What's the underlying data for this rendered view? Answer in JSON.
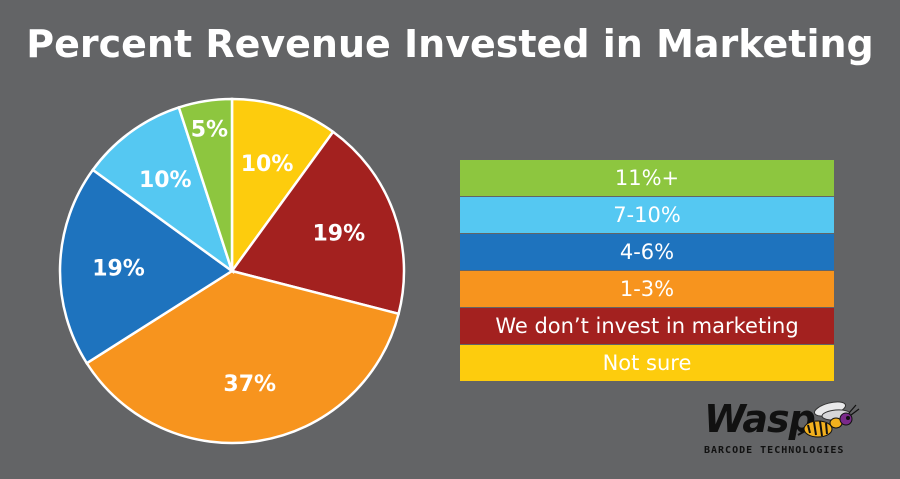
{
  "chart_data": {
    "type": "pie",
    "title": "Percent Revenue Invested in Marketing",
    "slices": [
      {
        "label": "Not sure",
        "value": 10,
        "display": "10%",
        "color": "#FDCC0D"
      },
      {
        "label": "We don’t invest in marketing",
        "value": 19,
        "display": "19%",
        "color": "#A3211F"
      },
      {
        "label": "1-3%",
        "value": 37,
        "display": "37%",
        "color": "#F7941E"
      },
      {
        "label": "4-6%",
        "value": 19,
        "display": "19%",
        "color": "#1E73BE"
      },
      {
        "label": "7-10%",
        "value": 10,
        "display": "10%",
        "color": "#55C8F2"
      },
      {
        "label": "11%+",
        "value": 5,
        "display": "5%",
        "color": "#8DC63F"
      }
    ],
    "start": "top, clockwise",
    "legend": [
      {
        "label": "11%+",
        "color": "#8DC63F"
      },
      {
        "label": "7-10%",
        "color": "#55C8F2"
      },
      {
        "label": "4-6%",
        "color": "#1E73BE"
      },
      {
        "label": "1-3%",
        "color": "#F7941E"
      },
      {
        "label": "We don’t invest in marketing",
        "color": "#A3211F"
      },
      {
        "label": "Not sure",
        "color": "#FDCC0D"
      }
    ],
    "legend_position": "right"
  },
  "brand": {
    "name": "Wasp",
    "tagline": "BARCODE TECHNOLOGIES",
    "icon": "wasp-icon"
  },
  "colors": {
    "background": "#636466",
    "text": "#FFFFFF"
  }
}
